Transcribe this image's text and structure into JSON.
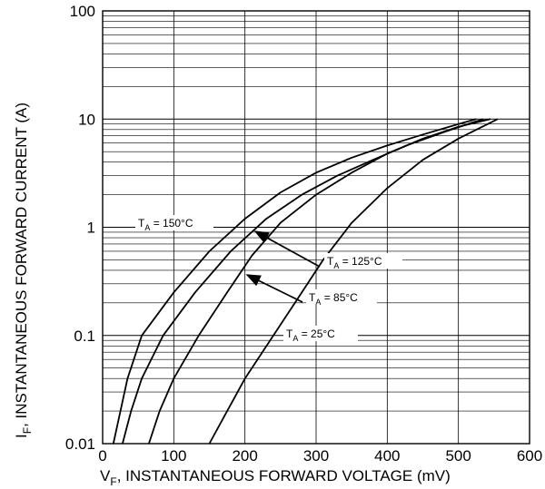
{
  "chart_data": {
    "type": "line",
    "title": "",
    "xlabel": {
      "main": "V",
      "sub": "F",
      "rest": ", INSTANTANEOUS FORWARD VOLTAGE (mV)"
    },
    "ylabel": {
      "main": "I",
      "sub": "F",
      "rest": ", INSTANTANEOUS FORWARD CURRENT (A)"
    },
    "x_ticks": [
      "0",
      "100",
      "200",
      "300",
      "400",
      "500",
      "600"
    ],
    "y_ticks": [
      "0.01",
      "0.1",
      "1",
      "10",
      "100"
    ],
    "xlim": [
      0,
      600
    ],
    "ylim": [
      0.01,
      100
    ],
    "y_scale": "log",
    "grid": true,
    "series": [
      {
        "name": {
          "pre": "T",
          "sub": "A",
          "post": " = 150°C"
        },
        "points": [
          [
            15,
            0.01
          ],
          [
            25,
            0.02
          ],
          [
            35,
            0.04
          ],
          [
            55,
            0.1
          ],
          [
            100,
            0.25
          ],
          [
            150,
            0.6
          ],
          [
            200,
            1.2
          ],
          [
            250,
            2.1
          ],
          [
            300,
            3.2
          ],
          [
            350,
            4.4
          ],
          [
            400,
            5.7
          ],
          [
            450,
            7.2
          ],
          [
            500,
            9.0
          ],
          [
            525,
            10.0
          ]
        ]
      },
      {
        "name": {
          "pre": "T",
          "sub": "A",
          "post": " = 125°C"
        },
        "points": [
          [
            28,
            0.01
          ],
          [
            40,
            0.02
          ],
          [
            55,
            0.04
          ],
          [
            85,
            0.1
          ],
          [
            130,
            0.25
          ],
          [
            180,
            0.6
          ],
          [
            230,
            1.2
          ],
          [
            280,
            2.0
          ],
          [
            330,
            3.0
          ],
          [
            380,
            4.2
          ],
          [
            430,
            5.8
          ],
          [
            480,
            7.6
          ],
          [
            520,
            9.3
          ],
          [
            535,
            10.0
          ]
        ]
      },
      {
        "name": {
          "pre": "T",
          "sub": "A",
          "post": " = 85°C"
        },
        "points": [
          [
            65,
            0.01
          ],
          [
            80,
            0.02
          ],
          [
            100,
            0.04
          ],
          [
            135,
            0.1
          ],
          [
            175,
            0.25
          ],
          [
            210,
            0.55
          ],
          [
            250,
            1.1
          ],
          [
            300,
            2.0
          ],
          [
            350,
            3.2
          ],
          [
            400,
            4.8
          ],
          [
            450,
            6.6
          ],
          [
            500,
            8.5
          ],
          [
            545,
            10.0
          ]
        ]
      },
      {
        "name": {
          "pre": "T",
          "sub": "A",
          "post": " = 25°C"
        },
        "points": [
          [
            150,
            0.01
          ],
          [
            175,
            0.02
          ],
          [
            200,
            0.04
          ],
          [
            240,
            0.1
          ],
          [
            280,
            0.25
          ],
          [
            310,
            0.5
          ],
          [
            350,
            1.1
          ],
          [
            400,
            2.3
          ],
          [
            450,
            4.2
          ],
          [
            500,
            6.6
          ],
          [
            555,
            10.0
          ]
        ]
      }
    ]
  }
}
